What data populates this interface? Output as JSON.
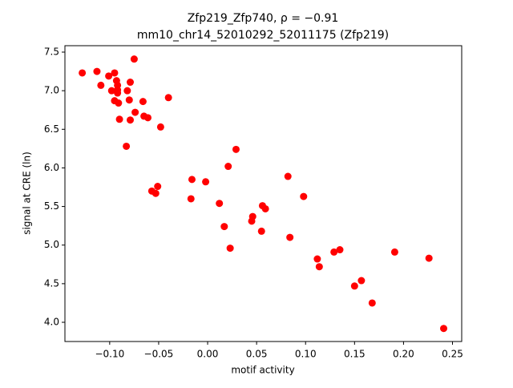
{
  "chart_data": {
    "type": "scatter",
    "title": "Zfp219_Zfp740, ρ = −0.91",
    "subtitle": "mm10_chr14_52010292_52011175 (Zfp219)",
    "x_label": "motif activity",
    "y_label": "signal at CRE (ln)",
    "color": "#ff0000",
    "xlim": [
      -0.1457,
      0.2594
    ],
    "ylim": [
      3.751,
      7.583
    ],
    "xticks": [
      {
        "value": -0.1,
        "label": "−0.10"
      },
      {
        "value": -0.05,
        "label": "−0.05"
      },
      {
        "value": 0,
        "label": "0.00"
      },
      {
        "value": 0.05,
        "label": "0.05"
      },
      {
        "value": 0.1,
        "label": "0.10"
      },
      {
        "value": 0.15,
        "label": "0.15"
      },
      {
        "value": 0.2,
        "label": "0.20"
      },
      {
        "value": 0.25,
        "label": "0.25"
      }
    ],
    "yticks": [
      {
        "value": 4,
        "label": "4.0"
      },
      {
        "value": 4.5,
        "label": "4.5"
      },
      {
        "value": 5,
        "label": "5.0"
      },
      {
        "value": 5.5,
        "label": "5.5"
      },
      {
        "value": 6,
        "label": "6.0"
      },
      {
        "value": 6.5,
        "label": "6.5"
      },
      {
        "value": 7,
        "label": "7.0"
      },
      {
        "value": 7.5,
        "label": "7.5"
      }
    ],
    "x": [
      -0.128,
      -0.113,
      -0.109,
      -0.101,
      -0.098,
      -0.095,
      -0.093,
      -0.092,
      -0.095,
      -0.091,
      -0.092,
      -0.092,
      -0.09,
      -0.079,
      -0.082,
      -0.08,
      -0.075,
      -0.074,
      -0.079,
      -0.066,
      -0.065,
      -0.061,
      -0.04,
      -0.048,
      -0.083,
      0.029,
      0.021,
      -0.016,
      -0.002,
      0.082,
      0.098,
      -0.057,
      -0.051,
      -0.053,
      -0.017,
      0.012,
      0.056,
      0.059,
      0.046,
      0.045,
      0.017,
      0.055,
      0.084,
      0.023,
      0.112,
      0.129,
      0.135,
      0.114,
      0.191,
      0.226,
      0.15,
      0.157,
      0.168,
      0.241
    ],
    "values": [
      7.23,
      7.25,
      7.07,
      7.19,
      7.0,
      7.23,
      7.13,
      7.07,
      6.87,
      6.84,
      7.01,
      6.97,
      6.63,
      7.11,
      7.0,
      6.88,
      7.41,
      6.72,
      6.62,
      6.86,
      6.67,
      6.65,
      6.91,
      6.53,
      6.28,
      6.24,
      6.02,
      5.85,
      5.82,
      5.89,
      5.63,
      5.7,
      5.76,
      5.67,
      5.6,
      5.54,
      5.51,
      5.47,
      5.37,
      5.31,
      5.24,
      5.18,
      5.1,
      4.96,
      4.82,
      4.91,
      4.94,
      4.72,
      4.91,
      4.83,
      4.47,
      4.54,
      4.25,
      3.92
    ]
  }
}
